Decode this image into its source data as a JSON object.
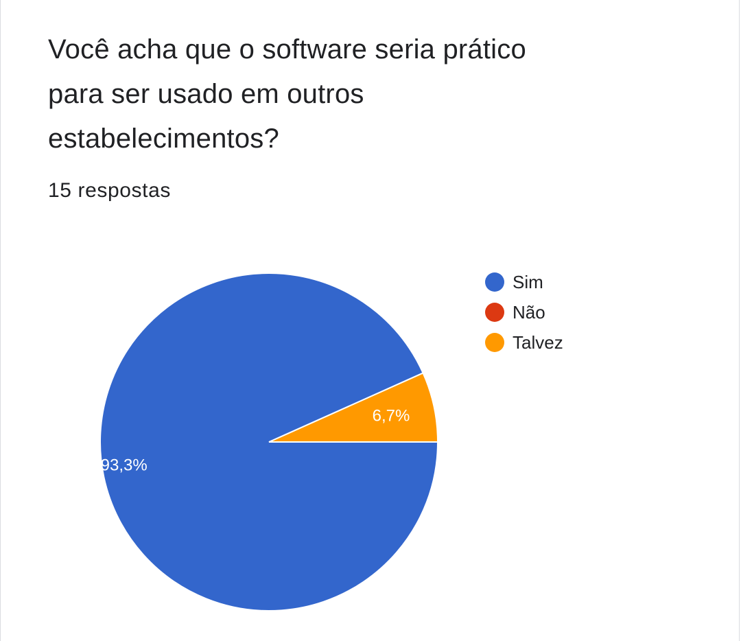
{
  "question": {
    "title_lines": [
      "Você acha que o software seria prático",
      "para ser usado em outros",
      "estabelecimentos?"
    ],
    "response_count": "15 respostas"
  },
  "chart_data": {
    "type": "pie",
    "title": "Você acha que o software seria prático para ser usado em outros estabelecimentos?",
    "subtitle": "15 respostas",
    "categories": [
      "Sim",
      "Não",
      "Talvez"
    ],
    "values": [
      93.3,
      0,
      6.7
    ],
    "labels": [
      "93,3%",
      "",
      "6,7%"
    ],
    "colors": [
      "#3366cc",
      "#dc3912",
      "#ff9900"
    ],
    "label_color": "#ffffff",
    "legend_position": "right"
  }
}
